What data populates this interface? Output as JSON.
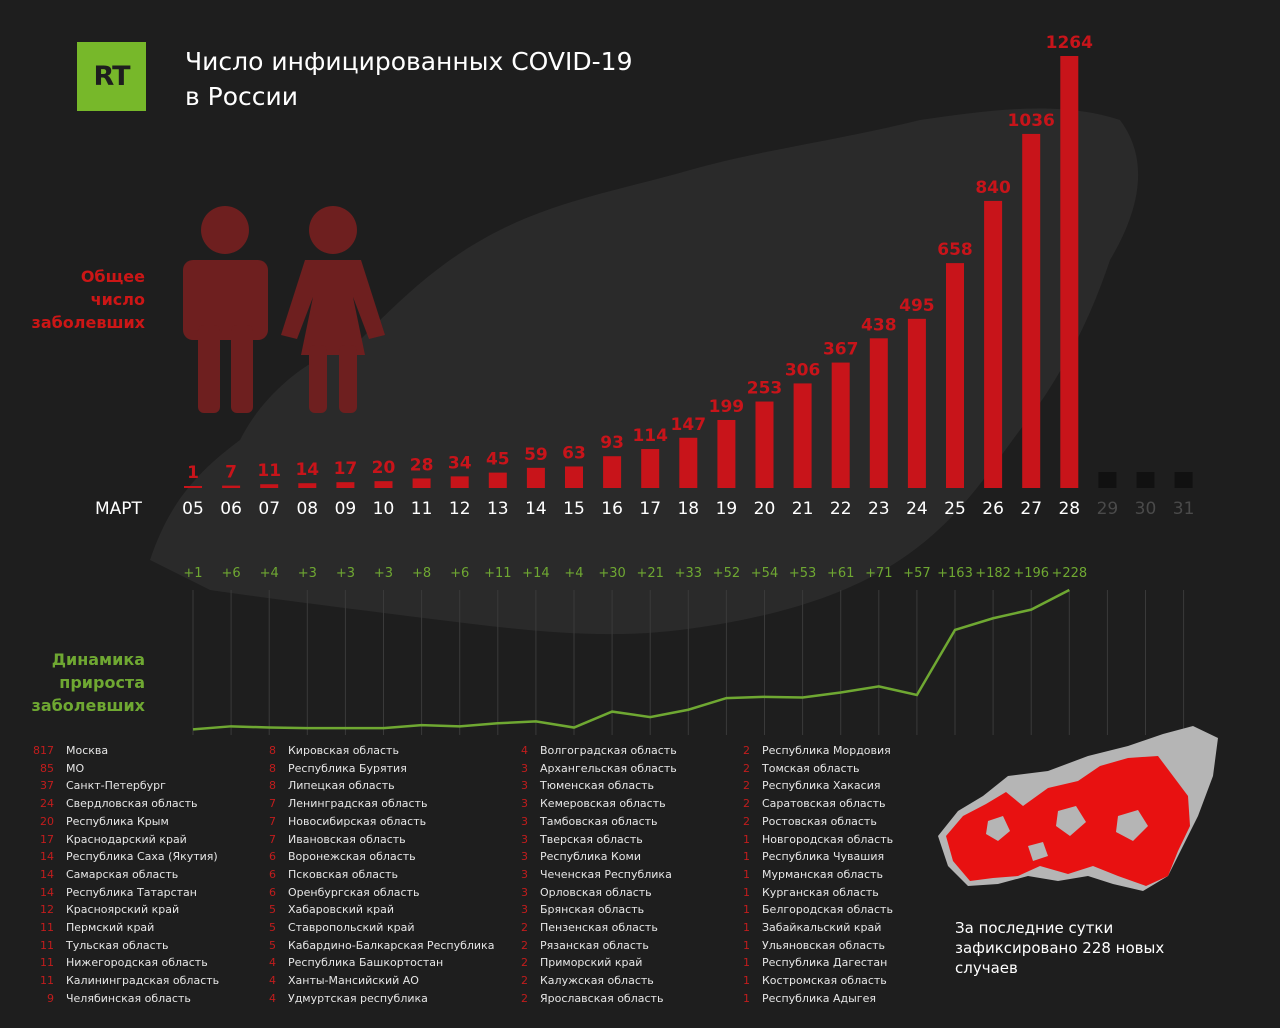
{
  "logo": {
    "text": "RT",
    "color": "#77b82a"
  },
  "title": {
    "line1": "Число инфицированных COVID-19",
    "line2": "в России"
  },
  "labels": {
    "total": [
      "Общее",
      "число",
      "заболевших"
    ],
    "growth": [
      "Динамика",
      "прироста",
      "заболевших"
    ],
    "month": "МАРТ"
  },
  "colors": {
    "bar": "#c8141a",
    "growth": "#6fa832",
    "background": "#1e1e1e"
  },
  "chart_data": {
    "type": "bar",
    "categories": [
      "05",
      "06",
      "07",
      "08",
      "09",
      "10",
      "11",
      "12",
      "13",
      "14",
      "15",
      "16",
      "17",
      "18",
      "19",
      "20",
      "21",
      "22",
      "23",
      "24",
      "25",
      "26",
      "27",
      "28",
      "29",
      "30",
      "31"
    ],
    "series": [
      {
        "values": [
          1,
          7,
          11,
          14,
          17,
          20,
          28,
          34,
          45,
          59,
          63,
          93,
          114,
          147,
          199,
          253,
          306,
          367,
          438,
          495,
          658,
          840,
          1036,
          1264,
          null,
          null,
          null
        ]
      },
      {
        "values": [
          1,
          6,
          4,
          3,
          3,
          3,
          8,
          6,
          11,
          14,
          4,
          30,
          21,
          33,
          52,
          54,
          53,
          61,
          71,
          57,
          163,
          182,
          196,
          228,
          null,
          null,
          null
        ]
      }
    ],
    "growth_labels": [
      "+1",
      "+6",
      "+4",
      "+3",
      "+3",
      "+3",
      "+8",
      "+6",
      "+11",
      "+14",
      "+4",
      "+30",
      "+21",
      "+33",
      "+52",
      "+54",
      "+53",
      "+61",
      "+71",
      "+57",
      "+163",
      "+182",
      "+196",
      "+228"
    ]
  },
  "regions": [
    [
      {
        "count": "817",
        "name": "Москва"
      },
      {
        "count": "85",
        "name": "МО"
      },
      {
        "count": "37",
        "name": "Санкт-Петербург"
      },
      {
        "count": "24",
        "name": "Свердловская область"
      },
      {
        "count": "20",
        "name": "Республика Крым"
      },
      {
        "count": "17",
        "name": "Краснодарский край"
      },
      {
        "count": "14",
        "name": "Республика Саха (Якутия)"
      },
      {
        "count": "14",
        "name": "Самарская область"
      },
      {
        "count": "14",
        "name": "Республика Татарстан"
      },
      {
        "count": "12",
        "name": "Красноярский край"
      },
      {
        "count": "11",
        "name": "Пермский край"
      },
      {
        "count": "11",
        "name": "Тульская область"
      },
      {
        "count": "11",
        "name": "Нижегородская область"
      },
      {
        "count": "11",
        "name": "Калининградская область"
      },
      {
        "count": "9",
        "name": "Челябинская область"
      }
    ],
    [
      {
        "count": "8",
        "name": " Кировская область"
      },
      {
        "count": "8",
        "name": "Республика Бурятия"
      },
      {
        "count": "8",
        "name": "Липецкая область"
      },
      {
        "count": "7",
        "name": "Ленинградская область"
      },
      {
        "count": "7",
        "name": "Новосибирская область"
      },
      {
        "count": "7",
        "name": "Ивановская область"
      },
      {
        "count": "6",
        "name": "Воронежская область"
      },
      {
        "count": "6",
        "name": "Псковская область"
      },
      {
        "count": "6",
        "name": "Оренбургская область"
      },
      {
        "count": "5",
        "name": "Хабаровский край"
      },
      {
        "count": "5",
        "name": "Ставропольский край"
      },
      {
        "count": "5",
        "name": "Кабардино-Балкарская Республика"
      },
      {
        "count": "4",
        "name": " Республика Башкортостан"
      },
      {
        "count": "4",
        "name": "Ханты-Мансийский АО"
      },
      {
        "count": "4",
        "name": "Удмуртская республика"
      }
    ],
    [
      {
        "count": "4",
        "name": "Волгоградская область"
      },
      {
        "count": "3",
        "name": "Архангельская область"
      },
      {
        "count": "3",
        "name": "Тюменская область"
      },
      {
        "count": "3",
        "name": "Кемеровская область"
      },
      {
        "count": "3",
        "name": "Тамбовская область"
      },
      {
        "count": "3",
        "name": "Тверская область"
      },
      {
        "count": "3",
        "name": "Республика Коми"
      },
      {
        "count": "3",
        "name": "Чеченская Республика"
      },
      {
        "count": "3",
        "name": "Орловская область"
      },
      {
        "count": "3",
        "name": "Брянская область"
      },
      {
        "count": "2",
        "name": "Пензенская область"
      },
      {
        "count": "2",
        "name": "Рязанская область"
      },
      {
        "count": "2",
        "name": "Приморский край"
      },
      {
        "count": "2",
        "name": "Калужская область"
      },
      {
        "count": "2",
        "name": "Ярославская область"
      }
    ],
    [
      {
        "count": "2",
        "name": "Республика Мордовия"
      },
      {
        "count": "2",
        "name": "Томская область"
      },
      {
        "count": "2",
        "name": "Республика Хакасия"
      },
      {
        "count": "2",
        "name": "Саратовская область"
      },
      {
        "count": "2",
        "name": "Ростовская область"
      },
      {
        "count": "1",
        "name": "Новгородская область"
      },
      {
        "count": "1",
        "name": "Республика Чувашия"
      },
      {
        "count": "1",
        "name": "Мурманская область"
      },
      {
        "count": "1",
        "name": "Курганская область"
      },
      {
        "count": "1",
        "name": "Белгородская область"
      },
      {
        "count": "1",
        "name": "Забайкальский край"
      },
      {
        "count": "1",
        "name": "Ульяновская область"
      },
      {
        "count": "1",
        "name": "Республика Дагестан"
      },
      {
        "count": "1",
        "name": "Костромская область"
      },
      {
        "count": "1",
        "name": "Республика Адыгея"
      }
    ]
  ],
  "caption": "За последние сутки зафиксировано 228 новых случаев",
  "icons": [
    "man-icon",
    "woman-icon",
    "russia-map-icon"
  ]
}
